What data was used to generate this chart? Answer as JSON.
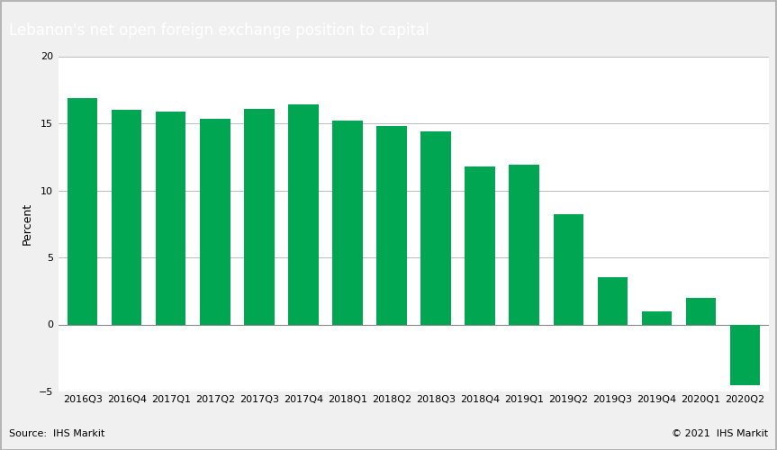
{
  "title": "Lebanon's net open foreign exchange position to capital",
  "ylabel": "Percent",
  "source_text": "Source:  IHS Markit",
  "copyright_text": "© 2021  IHS Markit",
  "categories": [
    "2016Q3",
    "2016Q4",
    "2017Q1",
    "2017Q2",
    "2017Q3",
    "2017Q4",
    "2018Q1",
    "2018Q2",
    "2018Q3",
    "2018Q4",
    "2019Q1",
    "2019Q2",
    "2019Q3",
    "2019Q4",
    "2020Q1",
    "2020Q2"
  ],
  "values": [
    16.9,
    16.0,
    15.85,
    15.35,
    16.1,
    16.4,
    15.2,
    14.8,
    14.4,
    11.75,
    11.9,
    8.2,
    3.5,
    1.0,
    2.0,
    -4.5
  ],
  "bar_color": "#00a651",
  "ylim": [
    -5,
    20
  ],
  "yticks": [
    -5,
    0,
    5,
    10,
    15,
    20
  ],
  "title_bg_color": "#636363",
  "title_text_color": "#ffffff",
  "title_fontsize": 12,
  "ylabel_fontsize": 9,
  "tick_fontsize": 8,
  "footer_fontsize": 8,
  "grid_color": "#bbbbbb",
  "chart_bg_color": "#ffffff",
  "outer_bg_color": "#f0f0f0",
  "footer_bg_color": "#e0e0e0",
  "border_color": "#aaaaaa"
}
